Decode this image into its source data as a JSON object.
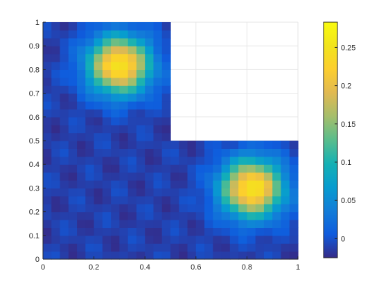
{
  "chart_data": {
    "type": "heatmap",
    "title": "",
    "xlabel": "",
    "ylabel": "",
    "xlim": [
      0,
      1
    ],
    "ylim": [
      0,
      1
    ],
    "grid": true,
    "domain_shape": "L-shaped region: unit square with the upper-right quadrant (x > 0.5, y > 0.5) removed",
    "xticks": [
      "0",
      "0.2",
      "0.4",
      "0.6",
      "0.8",
      "1"
    ],
    "yticks": [
      "0",
      "0.1",
      "0.2",
      "0.3",
      "0.4",
      "0.5",
      "0.6",
      "0.7",
      "0.8",
      "0.9",
      "1"
    ],
    "peaks": [
      {
        "x": 0.3,
        "y": 0.82,
        "value": 0.27
      },
      {
        "x": 0.82,
        "y": 0.3,
        "value": 0.27
      }
    ],
    "colorbar": {
      "colormap": "parula",
      "clim": [
        -0.025,
        0.283
      ],
      "ticks": [
        "0",
        "0.05",
        "0.1",
        "0.15",
        "0.2",
        "0.25"
      ]
    }
  }
}
